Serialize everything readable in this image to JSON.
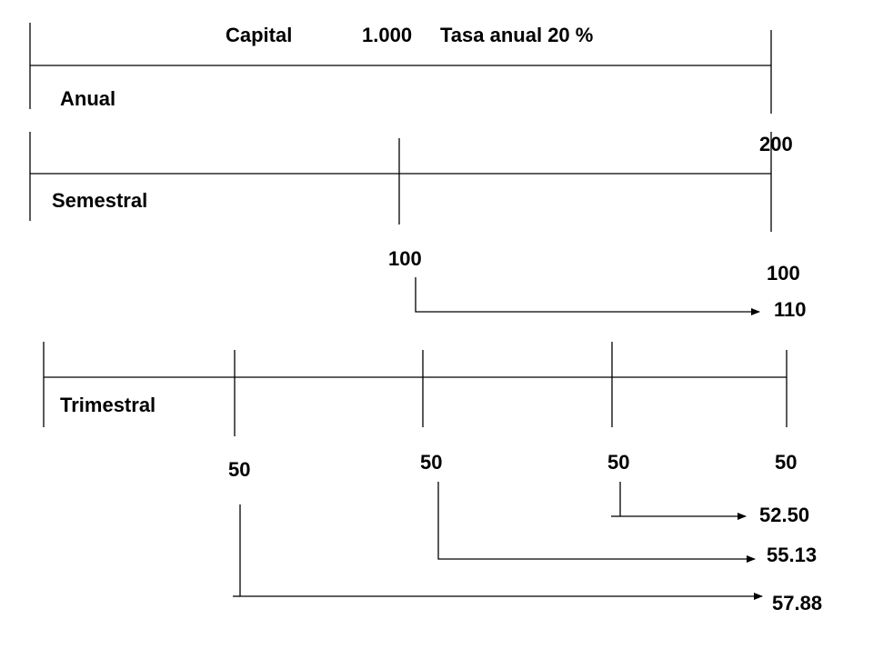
{
  "header": {
    "capital_label": "Capital",
    "capital": "1.000",
    "rate": "Tasa anual 20 %"
  },
  "anual": {
    "label": "Anual",
    "values": [
      "200"
    ]
  },
  "semestral": {
    "label": "Semestral",
    "values": [
      "100",
      "100"
    ],
    "compounded": "110"
  },
  "trimestral": {
    "label": "Trimestral",
    "values": [
      "50",
      "50",
      "50",
      "50"
    ],
    "compounded": [
      "52.50",
      "55.13",
      "57.88"
    ]
  }
}
